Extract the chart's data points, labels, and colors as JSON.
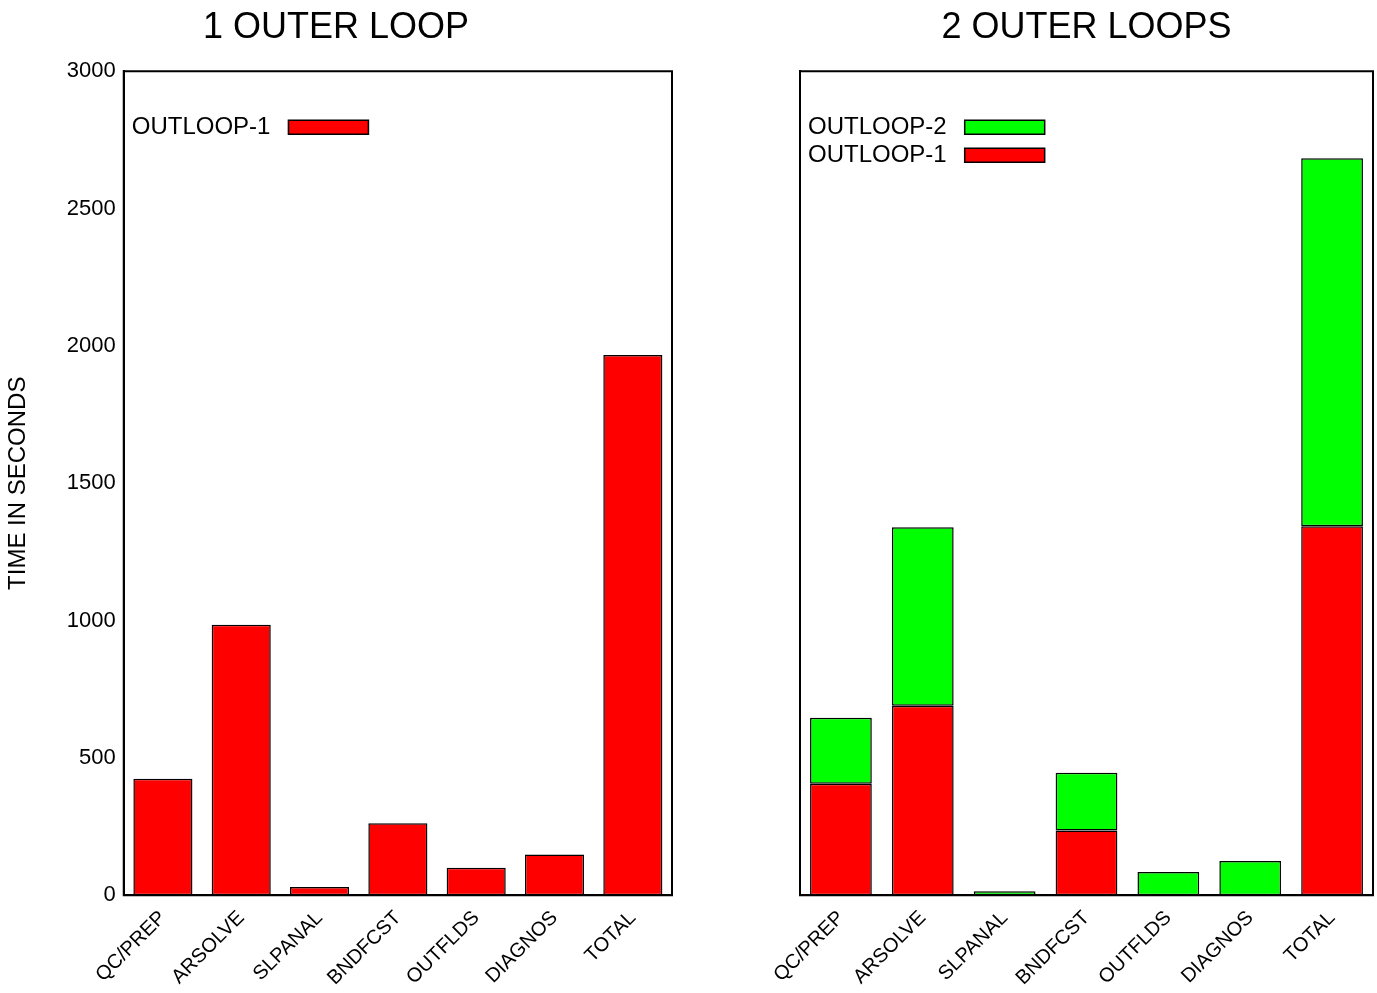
{
  "chart_data": [
    {
      "type": "bar",
      "title": "1 OUTER LOOP",
      "ylabel": "TIME IN SECONDS",
      "categories": [
        "QC/PREP",
        "ARSOLVE",
        "SLPANAL",
        "BNDFCST",
        "OUTFLDS",
        "DIAGNOS",
        "TOTAL"
      ],
      "series": [
        {
          "name": "OUTLOOP-1",
          "color": "#ff0000",
          "values": [
            424,
            985,
            30,
            262,
            100,
            148,
            1967
          ]
        }
      ],
      "ylim": [
        0,
        3000
      ],
      "yticks": [
        0,
        500,
        1000,
        1500,
        2000,
        2500,
        3000
      ],
      "legend": "top left"
    },
    {
      "type": "bar",
      "title": "2 OUTER LOOPS",
      "stacked": true,
      "categories": [
        "QC/PREP",
        "ARSOLVE",
        "SLPANAL",
        "BNDFCST",
        "OUTFLDS",
        "DIAGNOS",
        "TOTAL"
      ],
      "series": [
        {
          "name": "OUTLOOP-1",
          "color": "#ff0000",
          "values": [
            406,
            690,
            0,
            236,
            0,
            0,
            1343
          ]
        },
        {
          "name": "OUTLOOP-2",
          "color": "#00ff00",
          "values": [
            240,
            650,
            15,
            210,
            85,
            125,
            1340
          ]
        }
      ],
      "ylim": [
        0,
        3000
      ],
      "yticks": [
        0,
        500,
        1000,
        1500,
        2000,
        2500,
        3000
      ],
      "legend": "top left",
      "tick_labels": "x"
    }
  ]
}
